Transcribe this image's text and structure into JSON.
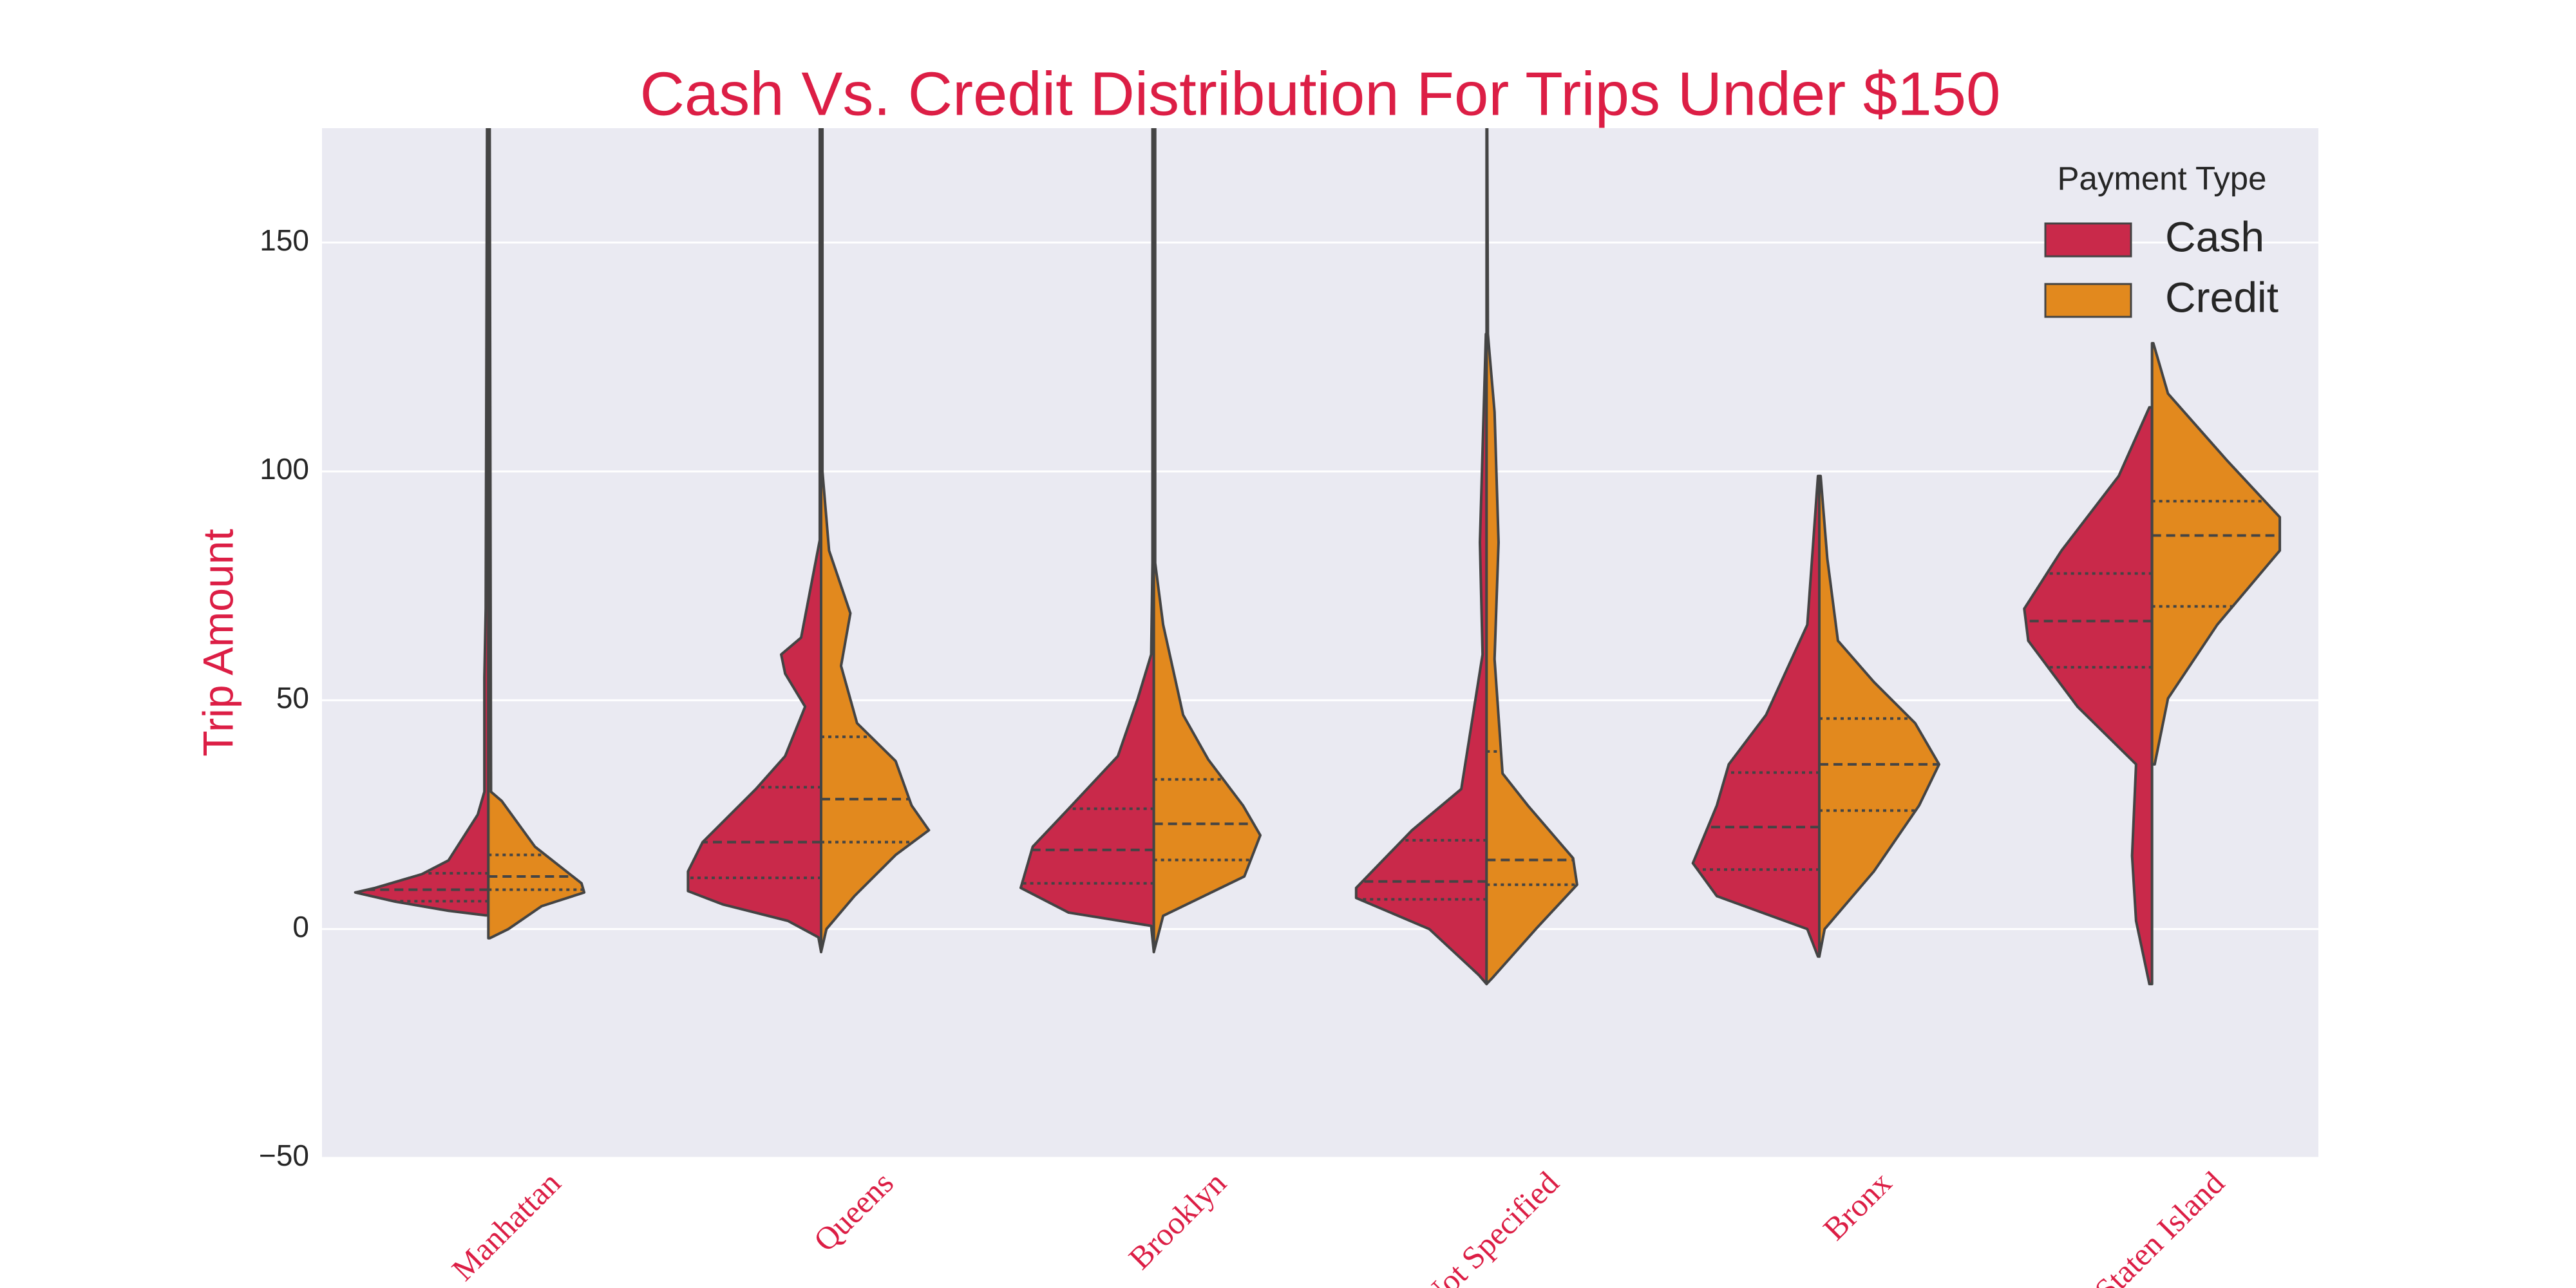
{
  "chart_data": {
    "type": "violin",
    "split": true,
    "title": "Cash Vs. Credit Distribution For Trips Under $150",
    "ylabel": "Trip Amount",
    "categories": [
      "Manhattan",
      "Queens",
      "Brooklyn",
      "Not Specified",
      "Bronx",
      "Staten Island"
    ],
    "ylim": [
      -50,
      175
    ],
    "yticks": [
      {
        "value": -50,
        "label": "−50"
      },
      0,
      50,
      100,
      150
    ],
    "grid": true,
    "legend_title": "Payment Type",
    "legend_loc": "upper right",
    "series": [
      {
        "name": "Cash",
        "color": "#c9294a",
        "violins": [
          {
            "density_y": [
              175,
              70,
              55,
              30,
              25,
              15,
              12,
              9,
              8,
              6,
              4,
              3
            ],
            "density_width": [
              0.01,
              0.02,
              0.03,
              0.03,
              0.08,
              0.3,
              0.5,
              0.85,
              1.0,
              0.7,
              0.3,
              0.02
            ],
            "quartiles": [
              6.1,
              8.6,
              12.2
            ]
          },
          {
            "density_y": [
              175,
              85,
              63.7,
              60,
              55.8,
              48.6,
              37.8,
              30.6,
              19,
              12.6,
              8.3,
              5.4,
              1.8,
              -1.8,
              -5
            ],
            "density_width": [
              0.01,
              0.01,
              0.15,
              0.3,
              0.27,
              0.12,
              0.27,
              0.49,
              0.89,
              1.0,
              1.0,
              0.74,
              0.25,
              0.02,
              0
            ],
            "quartiles": [
              11.2,
              19,
              31
            ]
          },
          {
            "density_y": [
              175,
              80,
              60,
              50.4,
              37.8,
              26.3,
              18,
              9,
              3.6,
              0.7,
              -5
            ],
            "density_width": [
              0.01,
              0.01,
              0.02,
              0.12,
              0.27,
              0.64,
              0.91,
              1.0,
              0.64,
              0.02,
              0
            ],
            "quartiles": [
              10,
              17.3,
              26.3
            ]
          },
          {
            "density_y": [
              130,
              84.5,
              60,
              30.6,
              21.6,
              9,
              6.8,
              0,
              -10,
              -12
            ],
            "density_width": [
              0.005,
              0.05,
              0.03,
              0.19,
              0.56,
              0.98,
              0.98,
              0.43,
              0.06,
              0
            ],
            "quartiles": [
              6.5,
              10.4,
              19.4
            ]
          },
          {
            "density_y": [
              99,
              66.5,
              46.8,
              36,
              27,
              14.4,
              7.2,
              0,
              -6
            ],
            "density_width": [
              0.01,
              0.09,
              0.4,
              0.68,
              0.77,
              0.95,
              0.77,
              0.09,
              0.01
            ],
            "quartiles": [
              13,
              22.3,
              34.2
            ]
          },
          {
            "density_y": [
              114,
              99,
              82.7,
              70,
              63,
              48.6,
              36,
              16,
              1.8,
              -12
            ],
            "density_width": [
              0.02,
              0.25,
              0.68,
              0.96,
              0.93,
              0.56,
              0.12,
              0.15,
              0.12,
              0.02
            ],
            "quartiles": [
              57.2,
              67.3,
              77.7
            ]
          }
        ]
      },
      {
        "name": "Credit",
        "color": "#e2891e",
        "violins": [
          {
            "density_y": [
              175,
              30,
              28,
              18,
              10,
              8,
              5,
              0,
              -2
            ],
            "density_width": [
              0.01,
              0.02,
              0.1,
              0.35,
              0.7,
              0.72,
              0.4,
              0.15,
              0.01
            ],
            "quartiles": [
              8.6,
              11.5,
              16.2
            ]
          },
          {
            "density_y": [
              175,
              100,
              82.7,
              69,
              57.5,
              45,
              36.7,
              27,
              21.6,
              16.2,
              7.2,
              0,
              -5
            ],
            "density_width": [
              0.01,
              0.01,
              0.06,
              0.22,
              0.15,
              0.27,
              0.56,
              0.68,
              0.81,
              0.56,
              0.25,
              0.04,
              0
            ],
            "quartiles": [
              19,
              28.4,
              42
            ]
          },
          {
            "density_y": [
              175,
              80,
              66.5,
              46.8,
              37,
              27,
              20.5,
              11.5,
              2.9,
              -5
            ],
            "density_width": [
              0.01,
              0.01,
              0.07,
              0.22,
              0.41,
              0.67,
              0.8,
              0.68,
              0.07,
              0
            ],
            "quartiles": [
              15.1,
              23,
              32.7
            ]
          },
          {
            "density_y": [
              175,
              130,
              113,
              84.5,
              59,
              34,
              27,
              15.5,
              9.7,
              0,
              -10.8,
              -12
            ],
            "density_width": [
              0.005,
              0.01,
              0.06,
              0.09,
              0.06,
              0.12,
              0.31,
              0.65,
              0.68,
              0.37,
              0.04,
              0
            ],
            "quartiles": [
              9.7,
              15.1,
              38.8
            ]
          },
          {
            "density_y": [
              99,
              81,
              63,
              54,
              45,
              36,
              27,
              12.6,
              0,
              -6
            ],
            "density_width": [
              0.01,
              0.06,
              0.14,
              0.41,
              0.72,
              0.9,
              0.75,
              0.41,
              0.04,
              0
            ],
            "quartiles": [
              25.9,
              36,
              46
            ]
          },
          {
            "density_y": [
              128,
              117,
              102.5,
              90,
              82.7,
              66.5,
              50.4,
              36
            ],
            "density_width": [
              0.01,
              0.12,
              0.56,
              0.96,
              0.96,
              0.49,
              0.12,
              0.02
            ],
            "quartiles": [
              70.5,
              86,
              93.5
            ]
          }
        ]
      }
    ]
  }
}
